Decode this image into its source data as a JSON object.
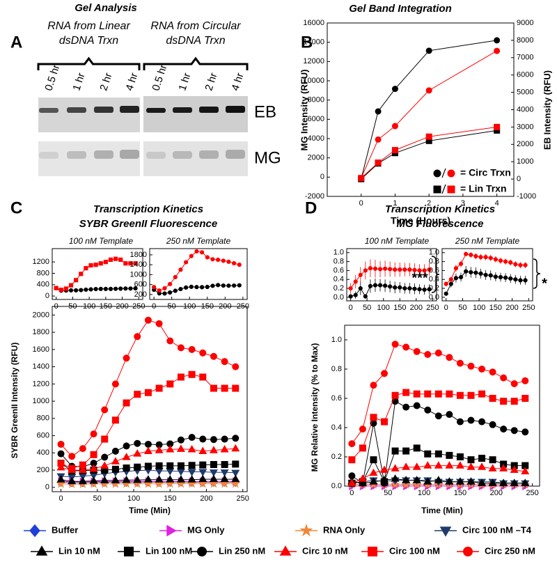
{
  "gel": {
    "letter": "A",
    "title": "Gel Analysis",
    "groups": [
      [
        "RNA from Linear",
        "dsDNA Trxn"
      ],
      [
        "RNA from Circular",
        "dsDNA Trxn"
      ]
    ],
    "lanes": [
      "0.5 hr",
      "1 hr",
      "2 hr",
      "4 hr",
      "0.5 hr",
      "1 hr",
      "2 hr",
      "4 hr"
    ],
    "rows": [
      "EB",
      "MG"
    ]
  },
  "chart_data": [
    {
      "type": "line",
      "letter": "B",
      "title": "Gel Band Integration",
      "xlabel": "Time (Hours)",
      "ylabel": "MG Intensity (RFU)",
      "y2label": "EB Intensity (RFU)",
      "y_axis_color": "#ff0000",
      "x": [
        0,
        0.5,
        1,
        2,
        4
      ],
      "xlim": [
        -1,
        4.5
      ],
      "xticks": [
        0,
        1,
        2,
        3,
        4
      ],
      "ylim": [
        -2000,
        16000
      ],
      "yticks": [
        -2000,
        0,
        2000,
        4000,
        6000,
        8000,
        10000,
        12000,
        14000,
        16000
      ],
      "y2lim": [
        -1000,
        9000
      ],
      "y2ticks": [
        -1000,
        0,
        1000,
        2000,
        3000,
        4000,
        5000,
        6000,
        7000,
        8000,
        9000
      ],
      "series": [
        {
          "name": "= Circ Trxn",
          "color": "#000000",
          "marker": "circle",
          "axis": "y2",
          "values": [
            0,
            3900,
            5200,
            7400,
            8000
          ]
        },
        {
          "name": "= Circ Trxn",
          "color": "#ff0000",
          "marker": "circle",
          "values": [
            -100,
            3900,
            5300,
            9000,
            13100
          ]
        },
        {
          "name": "= Lin Trxn",
          "color": "#000000",
          "marker": "square",
          "axis": "y2",
          "values": [
            0,
            900,
            1500,
            2200,
            2800
          ]
        },
        {
          "name": "= Lin Trxn",
          "color": "#ff0000",
          "marker": "square",
          "values": [
            -100,
            1500,
            2800,
            4200,
            5200
          ]
        }
      ]
    },
    {
      "type": "line",
      "letter": "C",
      "title": "Transcription Kinetics",
      "subtitle": "SYBR GreenII Fluorescence",
      "xlabel": "Time (Min)",
      "ylabel": "SYBR GreenII Intensity (RFU)",
      "x": [
        0,
        15,
        30,
        45,
        60,
        75,
        90,
        105,
        120,
        135,
        150,
        165,
        180,
        195,
        210,
        225,
        240
      ],
      "xlim": [
        -12,
        256
      ],
      "xticks": [
        0,
        50,
        100,
        150,
        200,
        250
      ],
      "ylim": [
        -50,
        2100
      ],
      "yticks": [
        0,
        200,
        400,
        600,
        800,
        1000,
        1200,
        1400,
        1600,
        1800,
        2000
      ],
      "series": [
        {
          "name": "Buffer",
          "color": "#1f3fd6",
          "marker": "diamond",
          "values": [
            60,
            55,
            55,
            58,
            60,
            62,
            60,
            60,
            62,
            60,
            60,
            62,
            60,
            60,
            60,
            60,
            60
          ]
        },
        {
          "name": "MG Only",
          "color": "#e020e0",
          "marker": "triangle-right",
          "values": [
            70,
            65,
            65,
            66,
            68,
            68,
            70,
            70,
            70,
            70,
            70,
            70,
            68,
            70,
            70,
            70,
            70
          ]
        },
        {
          "name": "RNA Only",
          "color": "#f0883a",
          "marker": "star",
          "values": [
            40,
            38,
            38,
            40,
            40,
            40,
            42,
            42,
            42,
            40,
            42,
            42,
            42,
            42,
            42,
            42,
            42
          ]
        },
        {
          "name": "Circ 100 nM –T4",
          "color": "#1f3a6e",
          "marker": "triangle-down",
          "values": [
            130,
            120,
            130,
            140,
            160,
            175,
            185,
            195,
            200,
            190,
            190,
            185,
            180,
            180,
            175,
            175,
            170
          ]
        },
        {
          "name": "Lin 10 nM",
          "color": "#000000",
          "marker": "triangle",
          "values": [
            90,
            70,
            70,
            75,
            80,
            80,
            85,
            85,
            90,
            90,
            90,
            90,
            90,
            95,
            95,
            95,
            95
          ]
        },
        {
          "name": "Lin 100 nM",
          "color": "#000000",
          "marker": "square",
          "values": [
            280,
            190,
            195,
            200,
            200,
            210,
            225,
            235,
            245,
            250,
            250,
            250,
            255,
            260,
            265,
            265,
            270
          ]
        },
        {
          "name": "Lin 250 nM",
          "color": "#000000",
          "marker": "circle",
          "values": [
            390,
            245,
            240,
            280,
            350,
            420,
            480,
            510,
            500,
            495,
            505,
            550,
            580,
            560,
            555,
            560,
            570
          ]
        },
        {
          "name": "Circ 10 nM",
          "color": "#ff0000",
          "marker": "triangle",
          "values": [
            230,
            200,
            200,
            215,
            250,
            300,
            350,
            390,
            420,
            430,
            440,
            445,
            440,
            420,
            430,
            440,
            450
          ]
        },
        {
          "name": "Circ 100 nM",
          "color": "#ff0000",
          "marker": "square",
          "values": [
            280,
            220,
            260,
            380,
            560,
            780,
            980,
            1080,
            1100,
            1150,
            1200,
            1280,
            1310,
            1280,
            1150,
            1150,
            1150
          ]
        },
        {
          "name": "Circ 250 nM",
          "color": "#ff0000",
          "marker": "circle",
          "values": [
            500,
            360,
            450,
            620,
            900,
            1200,
            1500,
            1750,
            1940,
            1900,
            1700,
            1620,
            1600,
            1560,
            1520,
            1460,
            1400
          ]
        }
      ]
    },
    {
      "type": "line",
      "title": "100 nM Template",
      "x": [
        0,
        15,
        30,
        45,
        60,
        75,
        90,
        105,
        120,
        135,
        150,
        165,
        180,
        195,
        210,
        225,
        240
      ],
      "xlim": [
        -12,
        262
      ],
      "xticks": [
        0,
        50,
        100,
        150,
        200,
        250
      ],
      "ylim": [
        -120,
        1670
      ],
      "yticks": [
        0,
        400,
        800,
        1200
      ],
      "series": [
        {
          "color": "#000000",
          "marker": "circle",
          "values": [
            280,
            190,
            195,
            200,
            200,
            210,
            225,
            235,
            245,
            250,
            250,
            250,
            255,
            260,
            265,
            265,
            270
          ]
        },
        {
          "color": "#ff0000",
          "marker": "square",
          "values": [
            280,
            220,
            260,
            380,
            560,
            780,
            980,
            1080,
            1100,
            1150,
            1200,
            1280,
            1310,
            1280,
            1150,
            1150,
            1150
          ]
        }
      ]
    },
    {
      "type": "line",
      "title": "250 nM Template",
      "x": [
        0,
        15,
        30,
        45,
        60,
        75,
        90,
        105,
        120,
        135,
        150,
        165,
        180,
        195,
        210,
        225,
        240
      ],
      "xlim": [
        -12,
        262
      ],
      "xticks": [
        0,
        50,
        100,
        150,
        200,
        250
      ],
      "ylim": [
        0,
        2050
      ],
      "yticks": [
        200,
        600,
        1000,
        1400,
        1800
      ],
      "series": [
        {
          "color": "#000000",
          "marker": "circle",
          "values": [
            390,
            245,
            240,
            280,
            350,
            420,
            480,
            510,
            500,
            495,
            505,
            550,
            580,
            560,
            555,
            560,
            570
          ]
        },
        {
          "color": "#ff0000",
          "marker": "circle",
          "values": [
            500,
            360,
            450,
            620,
            900,
            1200,
            1500,
            1750,
            1940,
            1900,
            1700,
            1620,
            1600,
            1560,
            1520,
            1460,
            1400
          ]
        }
      ]
    },
    {
      "type": "line",
      "letter": "D",
      "title": "Transcription Kinetics",
      "subtitle": "MG Fluorescence",
      "xlabel": "Time (Min)",
      "ylabel": "MG Relative Intensity (% to Max)",
      "x": [
        0,
        15,
        30,
        45,
        60,
        75,
        90,
        105,
        120,
        135,
        150,
        165,
        180,
        195,
        210,
        225,
        240
      ],
      "xlim": [
        -10,
        260
      ],
      "xticks": [
        0,
        50,
        100,
        150,
        200,
        250
      ],
      "ylim": [
        0,
        1.1
      ],
      "yticks": [
        {
          "value": 0,
          "label": "0.0"
        },
        0.2,
        0.4,
        0.6,
        0.8,
        {
          "value": 1,
          "label": "1.0"
        }
      ],
      "series": [
        {
          "color": "#1f3fd6",
          "marker": "diamond",
          "values": [
            0.01,
            0.01,
            0.01,
            0.01,
            0.01,
            0.01,
            0.01,
            0.01,
            0.01,
            0.01,
            0.01,
            0.01,
            0.01,
            0.01,
            0.01,
            0.01,
            0.01
          ]
        },
        {
          "color": "#e020e0",
          "marker": "triangle-right",
          "values": [
            0,
            0,
            0,
            0,
            0,
            0,
            0,
            0,
            0,
            0,
            0,
            0,
            0,
            0,
            0,
            0,
            0
          ]
        },
        {
          "color": "#f0883a",
          "marker": "star",
          "values": [
            0.01,
            0.01,
            0.01,
            0.01,
            0.01,
            0.01,
            0.01,
            0.01,
            0.01,
            0.01,
            0.01,
            0.01,
            0.01,
            0.01,
            0.01,
            0.01,
            0.01
          ]
        },
        {
          "color": "#1f3a6e",
          "marker": "triangle-down",
          "values": [
            0.02,
            0.03,
            0.04,
            0.03,
            0.04,
            0.04,
            0.04,
            0.04,
            0.03,
            0.03,
            0.03,
            0.03,
            0.03,
            0.03,
            0.02,
            0.02,
            0.02
          ]
        },
        {
          "color": "#000000",
          "marker": "triangle",
          "values": [
            0.03,
            0.02,
            0.03,
            0.04,
            0.05,
            0.04,
            0.04,
            0.03,
            0.04,
            0.03,
            0.03,
            0.03,
            0.02,
            0.02,
            0.02,
            0.02,
            0.02
          ]
        },
        {
          "color": "#000000",
          "marker": "square",
          "values": [
            0.02,
            0.03,
            0.18,
            0.03,
            0.24,
            0.24,
            0.26,
            0.22,
            0.22,
            0.21,
            0.2,
            0.18,
            0.19,
            0.18,
            0.15,
            0.14,
            0.14
          ]
        },
        {
          "color": "#000000",
          "marker": "circle",
          "values": [
            0.07,
            0.02,
            0.43,
            0.02,
            0.58,
            0.54,
            0.55,
            0.52,
            0.48,
            0.49,
            0.44,
            0.45,
            0.44,
            0.42,
            0.39,
            0.38,
            0.37
          ]
        },
        {
          "color": "#ff0000",
          "marker": "triangle",
          "values": [
            0.02,
            0.05,
            0.09,
            0.11,
            0.12,
            0.13,
            0.13,
            0.14,
            0.14,
            0.14,
            0.14,
            0.13,
            0.13,
            0.12,
            0.12,
            0.11,
            0.1
          ]
        },
        {
          "color": "#ff0000",
          "marker": "square",
          "values": [
            0.18,
            0.26,
            0.47,
            0.44,
            0.62,
            0.64,
            0.63,
            0.63,
            0.63,
            0.63,
            0.62,
            0.62,
            0.63,
            0.6,
            0.58,
            0.58,
            0.6
          ]
        },
        {
          "color": "#ff0000",
          "marker": "circle",
          "values": [
            0.29,
            0.39,
            0.69,
            0.77,
            0.97,
            0.95,
            0.92,
            0.9,
            0.91,
            0.88,
            0.84,
            0.82,
            0.8,
            0.78,
            0.74,
            0.7,
            0.72
          ]
        }
      ]
    },
    {
      "type": "line",
      "title": "100 nM Template",
      "annotation": "***",
      "x": [
        0,
        15,
        30,
        45,
        60,
        75,
        90,
        105,
        120,
        135,
        150,
        165,
        180,
        195,
        210,
        225,
        240
      ],
      "xlim": [
        -12,
        262
      ],
      "xticks": [
        0,
        50,
        100,
        150,
        200,
        250
      ],
      "ylim": [
        -0.08,
        1.09
      ],
      "yticks": [
        {
          "value": 0,
          "label": "0.0"
        },
        0.2,
        0.4,
        0.6,
        0.8,
        {
          "value": 1,
          "label": "1.0"
        }
      ],
      "series": [
        {
          "color": "#000000",
          "marker": "circle",
          "values": [
            0.02,
            0.05,
            0.2,
            0.02,
            0.25,
            0.27,
            0.27,
            0.26,
            0.24,
            0.22,
            0.22,
            0.2,
            0.2,
            0.19,
            0.18,
            0.17,
            0.18
          ],
          "errors": [
            0.05,
            0.08,
            0.15,
            0.05,
            0.15,
            0.15,
            0.14,
            0.14,
            0.13,
            0.13,
            0.12,
            0.12,
            0.12,
            0.12,
            0.11,
            0.11,
            0.11
          ]
        },
        {
          "color": "#ff0000",
          "marker": "circle",
          "values": [
            0.2,
            0.35,
            0.5,
            0.6,
            0.65,
            0.64,
            0.63,
            0.64,
            0.63,
            0.62,
            0.62,
            0.62,
            0.62,
            0.61,
            0.6,
            0.6,
            0.62
          ],
          "errors": [
            0.12,
            0.15,
            0.18,
            0.2,
            0.2,
            0.2,
            0.18,
            0.18,
            0.17,
            0.16,
            0.16,
            0.15,
            0.15,
            0.15,
            0.14,
            0.14,
            0.14
          ]
        }
      ]
    },
    {
      "type": "line",
      "title": "250 nM Template",
      "annotation": "*",
      "x": [
        0,
        15,
        30,
        45,
        60,
        75,
        90,
        105,
        120,
        135,
        150,
        165,
        180,
        195,
        210,
        225,
        240
      ],
      "xlim": [
        -12,
        262
      ],
      "xticks": [
        0,
        50,
        100,
        150,
        200,
        250
      ],
      "ylim": [
        -0.08,
        1.09
      ],
      "yticks": [
        {
          "value": 0,
          "label": "0.0"
        },
        0.2,
        0.4,
        0.6,
        0.8,
        {
          "value": 1,
          "label": "1.0"
        }
      ],
      "series": [
        {
          "color": "#000000",
          "marker": "circle",
          "values": [
            0.08,
            0.3,
            0.43,
            0.45,
            0.58,
            0.56,
            0.55,
            0.53,
            0.5,
            0.49,
            0.46,
            0.45,
            0.44,
            0.42,
            0.4,
            0.38,
            0.38
          ],
          "errors": [
            0.04,
            0.08,
            0.1,
            0.1,
            0.12,
            0.12,
            0.12,
            0.11,
            0.11,
            0.11,
            0.1,
            0.1,
            0.1,
            0.1,
            0.1,
            0.1,
            0.1
          ]
        },
        {
          "color": "#ff0000",
          "marker": "circle",
          "values": [
            0.3,
            0.4,
            0.65,
            0.75,
            0.97,
            0.95,
            0.92,
            0.9,
            0.9,
            0.88,
            0.85,
            0.82,
            0.8,
            0.78,
            0.74,
            0.72,
            0.72
          ],
          "errors": [
            0.05,
            0.06,
            0.08,
            0.08,
            0.05,
            0.06,
            0.07,
            0.07,
            0.07,
            0.07,
            0.07,
            0.07,
            0.07,
            0.07,
            0.07,
            0.07,
            0.07
          ]
        }
      ]
    }
  ]
}
